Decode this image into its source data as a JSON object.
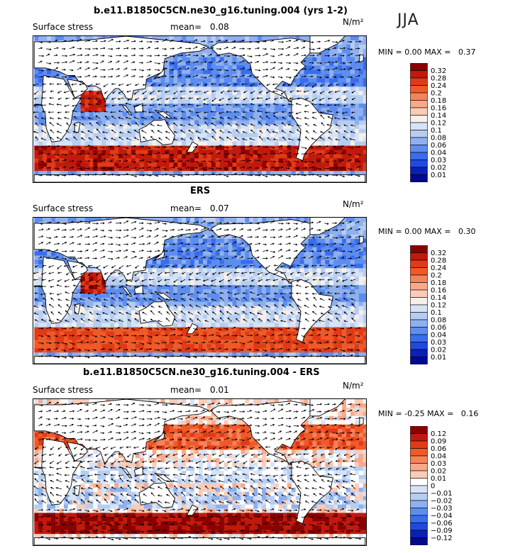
{
  "season": "JJA",
  "panels": [
    {
      "title": "b.e11.B1850C5CN.ne30_g16.tuning.004 (yrs 1-2)",
      "variable": "Surface stress",
      "mean_label": "mean=",
      "mean_value": "0.08",
      "unit": "N/m²",
      "min_label": "MIN =",
      "min_value": "0.00",
      "max_label": "MAX =",
      "max_value": "0.37",
      "levels": [
        "0.32",
        "0.28",
        "0.24",
        "0.2",
        "0.18",
        "0.16",
        "0.14",
        "0.12",
        "0.1",
        "0.08",
        "0.06",
        "0.04",
        "0.03",
        "0.02",
        "0.01"
      ]
    },
    {
      "title": "ERS",
      "variable": "Surface stress",
      "mean_label": "mean=",
      "mean_value": "0.07",
      "unit": "N/m²",
      "min_label": "MIN =",
      "min_value": "0.00",
      "max_label": "MAX =",
      "max_value": "0.30",
      "levels": [
        "0.32",
        "0.28",
        "0.24",
        "0.2",
        "0.18",
        "0.16",
        "0.14",
        "0.12",
        "0.1",
        "0.08",
        "0.06",
        "0.04",
        "0.03",
        "0.02",
        "0.01"
      ]
    },
    {
      "title": "b.e11.B1850C5CN.ne30_g16.tuning.004 - ERS",
      "variable": "Surface stress",
      "mean_label": "mean=",
      "mean_value": "0.01",
      "unit": "N/m²",
      "min_label": "MIN =",
      "min_value": "-0.25",
      "max_label": "MAX =",
      "max_value": "0.16",
      "levels": [
        "0.12",
        "0.09",
        "0.06",
        "0.04",
        "0.03",
        "0.02",
        "0.01",
        "0",
        "−0.01",
        "−0.02",
        "−0.03",
        "−0.04",
        "−0.06",
        "−0.09",
        "−0.12"
      ]
    }
  ],
  "colors": {
    "seq": [
      "#8b0000",
      "#c11a0d",
      "#e03a17",
      "#ef5a29",
      "#f6835a",
      "#f9a98a",
      "#fbcbb6",
      "#f7efe9",
      "#d6e3f7",
      "#b6cdf2",
      "#8fb0ee",
      "#5d8df0",
      "#3a6cee",
      "#1f49e0",
      "#0a20b8",
      "#000a8c"
    ],
    "div": [
      "#8b0000",
      "#c11a0d",
      "#e03a17",
      "#ef5a29",
      "#f6835a",
      "#f9a98a",
      "#fbcbb6",
      "#ffffff",
      "#d6e3f7",
      "#b6cdf2",
      "#8fb0ee",
      "#5d8df0",
      "#3a6cee",
      "#1f49e0",
      "#0a20b8",
      "#000a8c"
    ]
  }
}
